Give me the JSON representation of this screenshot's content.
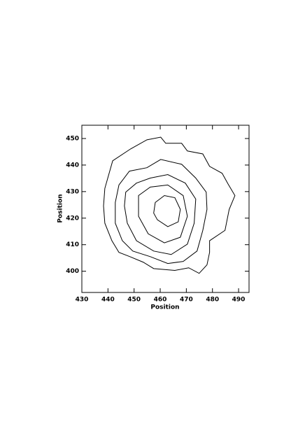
{
  "chart_data": {
    "type": "contour",
    "xlabel": "Position",
    "ylabel": "Position",
    "xlim": [
      430,
      494
    ],
    "ylim": [
      392,
      455
    ],
    "xticks": [
      430,
      440,
      450,
      460,
      470,
      480,
      490
    ],
    "yticks": [
      400,
      410,
      420,
      430,
      440,
      450
    ],
    "color": "#000000",
    "contours": [
      {
        "x": [
          441.8,
          448.7,
          454.9,
          460.2,
          462.1,
          468.2,
          470.4,
          476.3,
          478.9,
          483.7,
          485.9,
          488.6,
          486.4,
          484.8,
          478.9,
          478.9,
          477.9,
          474.9,
          470.9,
          465.6,
          457.5,
          453.5,
          448.4,
          444.2,
          441.5,
          438.8,
          438.3,
          438.8
        ],
        "y": [
          441.6,
          446.1,
          449.5,
          450.5,
          448.2,
          448.2,
          445.3,
          444.2,
          439.5,
          436.9,
          433.0,
          428.5,
          423.3,
          415.4,
          411.5,
          407.1,
          402.4,
          399.2,
          401.3,
          400.3,
          401.0,
          403.4,
          405.5,
          407.1,
          411.5,
          418.1,
          424.6,
          431.2
        ]
      },
      {
        "x": [
          444.2,
          448.2,
          454.9,
          460.2,
          468.2,
          473.6,
          477.6,
          477.9,
          476.3,
          474.1,
          468.8,
          462.9,
          456.2,
          449.5,
          445.5,
          442.8,
          442.8
        ],
        "y": [
          432.5,
          437.7,
          439.0,
          442.1,
          440.3,
          435.1,
          429.8,
          423.3,
          415.4,
          407.6,
          403.7,
          402.9,
          405.5,
          407.6,
          411.5,
          418.1,
          425.9
        ]
      },
      {
        "x": [
          446.8,
          450.9,
          456.2,
          462.9,
          469.6,
          473.6,
          473.0,
          470.4,
          464.2,
          457.5,
          450.9,
          447.4,
          446.3
        ],
        "y": [
          429.8,
          433.2,
          435.1,
          436.4,
          433.2,
          427.2,
          418.1,
          410.2,
          406.3,
          407.6,
          411.5,
          418.1,
          424.6
        ]
      },
      {
        "x": [
          451.7,
          456.2,
          462.9,
          468.8,
          470.4,
          467.7,
          461.6,
          455.4,
          451.7
        ],
        "y": [
          428.5,
          431.7,
          432.5,
          428.5,
          420.7,
          412.8,
          410.7,
          414.1,
          420.7
        ]
      },
      {
        "x": [
          458.1,
          461.6,
          465.6,
          467.7,
          466.9,
          462.9,
          458.9,
          457.5
        ],
        "y": [
          425.9,
          428.5,
          427.7,
          423.3,
          418.6,
          416.8,
          419.4,
          421.9
        ]
      }
    ]
  }
}
